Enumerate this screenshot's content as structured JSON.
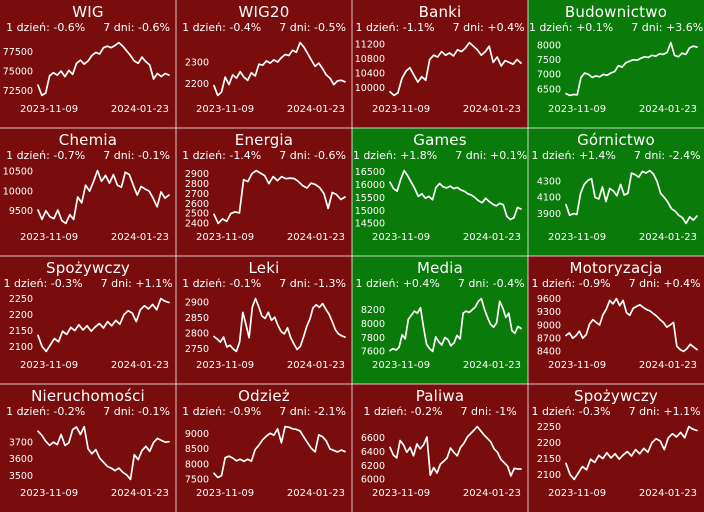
{
  "colors": {
    "negative_bg": "#790d0d",
    "positive_bg": "#0a7a0a",
    "line": "#ffffff",
    "text": "#ffffff",
    "separator": "rgba(255,255,255,0.38)"
  },
  "labels": {
    "day1": "1 dzień:",
    "day7": "7 dni:"
  },
  "x_axis": {
    "start": "2023-11-09",
    "end": "2024-01-23"
  },
  "chart_data": [
    {
      "type": "line",
      "title": "WIG",
      "change_1d": "-0.6%",
      "change_7d": "-0.6%",
      "sentiment": "negative",
      "yticks": [
        77500,
        75000,
        72500
      ],
      "x_range": [
        "2023-11-09",
        "2024-01-23"
      ],
      "values": [
        73200,
        71900,
        72200,
        74400,
        74800,
        74500,
        75000,
        74300,
        75100,
        74600,
        76000,
        76400,
        75900,
        76300,
        77000,
        77400,
        77200,
        78000,
        78200,
        78000,
        78300,
        78650,
        78200,
        77600,
        77000,
        76300,
        76000,
        76800,
        76200,
        75800,
        74000,
        74700,
        74300,
        74700,
        74500
      ]
    },
    {
      "type": "line",
      "title": "WIG20",
      "change_1d": "-0.4%",
      "change_7d": "-0.5%",
      "sentiment": "negative",
      "yticks": [
        2300,
        2200
      ],
      "x_range": [
        "2023-11-09",
        "2024-01-23"
      ],
      "values": [
        2190,
        2145,
        2160,
        2230,
        2195,
        2240,
        2225,
        2255,
        2230,
        2215,
        2250,
        2235,
        2290,
        2285,
        2305,
        2295,
        2310,
        2300,
        2320,
        2335,
        2330,
        2355,
        2345,
        2390,
        2370,
        2340,
        2310,
        2280,
        2295,
        2270,
        2240,
        2225,
        2195,
        2212,
        2215,
        2208
      ]
    },
    {
      "type": "line",
      "title": "Banki",
      "change_1d": "-1.1%",
      "change_7d": "+0.4%",
      "sentiment": "negative",
      "yticks": [
        11200,
        10800,
        10400,
        10000
      ],
      "x_range": [
        "2023-11-09",
        "2024-01-23"
      ],
      "values": [
        9880,
        9780,
        9850,
        10250,
        10450,
        10550,
        10350,
        10150,
        10300,
        10200,
        10780,
        10900,
        10850,
        11000,
        10900,
        10960,
        10880,
        11050,
        11000,
        11100,
        11250,
        11150,
        11050,
        10900,
        11000,
        11150,
        10700,
        10850,
        10600,
        10750,
        10700,
        10650,
        10780,
        10680
      ]
    },
    {
      "type": "line",
      "title": "Budownictwo",
      "change_1d": "+0.1%",
      "change_7d": "+3.6%",
      "sentiment": "positive",
      "yticks": [
        8000,
        7500,
        7000,
        6500
      ],
      "x_range": [
        "2023-11-09",
        "2024-01-23"
      ],
      "values": [
        6350,
        6290,
        6320,
        6310,
        6900,
        7050,
        7000,
        6900,
        6950,
        6920,
        7000,
        6970,
        7050,
        7100,
        7300,
        7250,
        7400,
        7450,
        7500,
        7480,
        7550,
        7600,
        7580,
        7650,
        7620,
        7700,
        7680,
        7750,
        8080,
        7650,
        7600,
        7720,
        7680,
        7900,
        7960,
        7930
      ]
    },
    {
      "type": "line",
      "title": "Chemia",
      "change_1d": "-0.7%",
      "change_7d": "-0.1%",
      "sentiment": "negative",
      "yticks": [
        10500,
        10000,
        9500
      ],
      "x_range": [
        "2023-11-09",
        "2024-01-23"
      ],
      "values": [
        9520,
        9280,
        9500,
        9350,
        9300,
        9520,
        9250,
        9180,
        9400,
        9280,
        9850,
        9700,
        10150,
        10000,
        10250,
        10520,
        10250,
        10400,
        10200,
        10420,
        10150,
        10100,
        10480,
        10420,
        10150,
        9900,
        10120,
        10050,
        10000,
        9820,
        9600,
        9980,
        9820,
        9900
      ]
    },
    {
      "type": "line",
      "title": "Energia",
      "change_1d": "-1.4%",
      "change_7d": "-0.6%",
      "sentiment": "negative",
      "yticks": [
        2900,
        2800,
        2700,
        2600,
        2500,
        2400
      ],
      "x_range": [
        "2023-11-09",
        "2024-01-23"
      ],
      "values": [
        2490,
        2400,
        2445,
        2420,
        2500,
        2515,
        2505,
        2840,
        2820,
        2900,
        2930,
        2905,
        2880,
        2800,
        2870,
        2830,
        2870,
        2850,
        2855,
        2850,
        2820,
        2780,
        2755,
        2805,
        2790,
        2760,
        2700,
        2550,
        2710,
        2690,
        2640,
        2665
      ]
    },
    {
      "type": "line",
      "title": "Games",
      "change_1d": "+1.8%",
      "change_7d": "+0.1%",
      "sentiment": "positive",
      "yticks": [
        16500,
        16000,
        15500,
        15000,
        14500
      ],
      "x_range": [
        "2023-11-09",
        "2024-01-23"
      ],
      "values": [
        16100,
        15850,
        15750,
        16200,
        16550,
        16350,
        16100,
        15850,
        15550,
        15650,
        15480,
        15550,
        15420,
        15900,
        16050,
        15920,
        15880,
        15950,
        15850,
        15900,
        15800,
        15750,
        15650,
        15600,
        15500,
        15380,
        15300,
        15480,
        15350,
        15250,
        15180,
        15280,
        15220,
        14780,
        14650,
        14720,
        15120,
        15060
      ]
    },
    {
      "type": "line",
      "title": "Górnictwo",
      "change_1d": "+1.4%",
      "change_7d": "-2.4%",
      "sentiment": "positive",
      "yticks": [
        4300,
        4100,
        3900
      ],
      "x_range": [
        "2023-11-09",
        "2024-01-23"
      ],
      "values": [
        4010,
        3880,
        3900,
        3890,
        4150,
        4260,
        4310,
        4330,
        4100,
        4080,
        4230,
        4050,
        4210,
        4180,
        4120,
        4260,
        4130,
        4150,
        4400,
        4380,
        4350,
        4420,
        4400,
        4430,
        4390,
        4300,
        4150,
        4100,
        4040,
        3960,
        3930,
        3880,
        3850,
        3780,
        3860,
        3820,
        3870
      ]
    },
    {
      "type": "line",
      "title": "Spożywczy",
      "change_1d": "-0.3%",
      "change_7d": "+1.1%",
      "sentiment": "negative",
      "yticks": [
        2250,
        2200,
        2150,
        2100
      ],
      "x_range": [
        "2023-11-09",
        "2024-01-23"
      ],
      "values": [
        2135,
        2100,
        2085,
        2105,
        2125,
        2115,
        2148,
        2138,
        2160,
        2150,
        2168,
        2152,
        2165,
        2148,
        2162,
        2172,
        2158,
        2178,
        2165,
        2182,
        2170,
        2200,
        2212,
        2205,
        2178,
        2215,
        2228,
        2218,
        2232,
        2215,
        2250,
        2242,
        2238
      ]
    },
    {
      "type": "line",
      "title": "Leki",
      "change_1d": "-0.1%",
      "change_7d": "-1.3%",
      "sentiment": "negative",
      "yticks": [
        2900,
        2850,
        2800,
        2750
      ],
      "x_range": [
        "2023-11-09",
        "2024-01-23"
      ],
      "values": [
        2790,
        2782,
        2772,
        2788,
        2756,
        2762,
        2750,
        2742,
        2772,
        2868,
        2828,
        2786,
        2884,
        2912,
        2886,
        2856,
        2848,
        2868,
        2842,
        2852,
        2826,
        2806,
        2798,
        2818,
        2786,
        2766,
        2748,
        2758,
        2788,
        2822,
        2846,
        2882,
        2892,
        2884,
        2896,
        2878,
        2862,
        2838,
        2812,
        2798,
        2792,
        2788
      ]
    },
    {
      "type": "line",
      "title": "Media",
      "change_1d": "+0.4%",
      "change_7d": "-0.4%",
      "sentiment": "positive",
      "yticks": [
        8200,
        8000,
        7800,
        7600
      ],
      "x_range": [
        "2023-11-09",
        "2024-01-23"
      ],
      "values": [
        7610,
        7640,
        7620,
        7660,
        7840,
        7780,
        8060,
        8120,
        8180,
        8150,
        8230,
        7950,
        7700,
        7640,
        7600,
        7810,
        7740,
        7690,
        7800,
        7770,
        7680,
        7720,
        7830,
        7780,
        8150,
        8180,
        8160,
        8200,
        8240,
        8320,
        8360,
        8210,
        8090,
        7990,
        7950,
        8010,
        8320,
        8230,
        8090,
        8150,
        7900,
        7860,
        7960,
        7930
      ]
    },
    {
      "type": "line",
      "title": "Motoryzacja",
      "change_1d": "-0.9%",
      "change_7d": "+0.4%",
      "sentiment": "negative",
      "yticks": [
        9600,
        9300,
        9000,
        8700,
        8400
      ],
      "x_range": [
        "2023-11-09",
        "2024-01-23"
      ],
      "values": [
        8760,
        8820,
        8700,
        8760,
        8860,
        8700,
        8780,
        9020,
        9120,
        9060,
        9000,
        9230,
        9360,
        9560,
        9480,
        9600,
        9440,
        9560,
        9280,
        9220,
        9380,
        9420,
        9460,
        9400,
        9350,
        9320,
        9260,
        9200,
        9120,
        9060,
        8950,
        9000,
        9060,
        8520,
        8440,
        8400,
        8460,
        8560,
        8500,
        8440
      ]
    },
    {
      "type": "line",
      "title": "Nieruchomości",
      "change_1d": "-0.2%",
      "change_7d": "-0.1%",
      "sentiment": "negative",
      "yticks": [
        3700,
        3600,
        3500
      ],
      "x_range": [
        "2023-11-09",
        "2024-01-23"
      ],
      "values": [
        3765,
        3740,
        3705,
        3680,
        3700,
        3685,
        3745,
        3680,
        3695,
        3775,
        3790,
        3745,
        3792,
        3660,
        3630,
        3655,
        3605,
        3580,
        3555,
        3545,
        3530,
        3545,
        3520,
        3505,
        3478,
        3625,
        3595,
        3650,
        3675,
        3645,
        3698,
        3722,
        3710,
        3700,
        3702
      ]
    },
    {
      "type": "line",
      "title": "Odzież",
      "change_1d": "-0.9%",
      "change_7d": "-2.1%",
      "sentiment": "negative",
      "yticks": [
        9000,
        8500,
        8000,
        7500
      ],
      "x_range": [
        "2023-11-09",
        "2024-01-23"
      ],
      "values": [
        7700,
        7560,
        7620,
        8210,
        8260,
        8200,
        8110,
        8160,
        8090,
        8160,
        8100,
        8480,
        8620,
        8800,
        8920,
        9010,
        8950,
        9160,
        8700,
        9230,
        9210,
        9160,
        9140,
        9090,
        8890,
        8700,
        8520,
        8400,
        8960,
        8900,
        8760,
        8500,
        8450,
        8400,
        8460,
        8410
      ]
    },
    {
      "type": "line",
      "title": "Paliwa",
      "change_1d": "-0.2%",
      "change_7d": "-1%",
      "sentiment": "negative",
      "yticks": [
        6600,
        6400,
        6200,
        6000
      ],
      "x_range": [
        "2023-11-09",
        "2024-01-23"
      ],
      "values": [
        6460,
        6350,
        6310,
        6560,
        6500,
        6390,
        6460,
        6340,
        6510,
        6440,
        6500,
        6610,
        6060,
        6170,
        6090,
        6220,
        6260,
        6310,
        6450,
        6390,
        6340,
        6460,
        6520,
        6610,
        6660,
        6710,
        6760,
        6700,
        6640,
        6590,
        6540,
        6440,
        6390,
        6290,
        6240,
        6190,
        6050,
        6160,
        6150,
        6150
      ]
    },
    {
      "type": "line",
      "title": "Spożywczy",
      "change_1d": "-0.3%",
      "change_7d": "+1.1%",
      "sentiment": "negative",
      "yticks": [
        2250,
        2200,
        2150,
        2100
      ],
      "x_range": [
        "2023-11-09",
        "2024-01-23"
      ],
      "values": [
        2135,
        2100,
        2085,
        2105,
        2125,
        2115,
        2148,
        2138,
        2160,
        2150,
        2168,
        2152,
        2165,
        2148,
        2162,
        2172,
        2158,
        2178,
        2165,
        2182,
        2170,
        2200,
        2212,
        2205,
        2178,
        2215,
        2228,
        2218,
        2232,
        2215,
        2250,
        2242,
        2238
      ]
    }
  ]
}
